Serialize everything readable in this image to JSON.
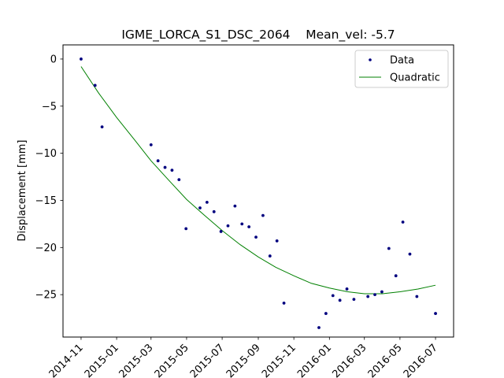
{
  "chart_data": {
    "type": "scatter",
    "title": "IGME_LORCA_S1_DSC_2064    Mean_vel: -5.7",
    "xlabel": "",
    "ylabel": "Displacement [mm]",
    "xlim": [
      "2014-10-01",
      "2016-08-01"
    ],
    "ylim": [
      -29.5,
      1.5
    ],
    "grid": false,
    "legend": {
      "placement": "top-right",
      "entries": [
        "Data",
        "Quadratic"
      ]
    },
    "x_ticks": [
      {
        "date": "2014-11-01",
        "label": "2014-11"
      },
      {
        "date": "2015-01-01",
        "label": "2015-01"
      },
      {
        "date": "2015-03-01",
        "label": "2015-03"
      },
      {
        "date": "2015-05-01",
        "label": "2015-05"
      },
      {
        "date": "2015-07-01",
        "label": "2015-07"
      },
      {
        "date": "2015-09-01",
        "label": "2015-09"
      },
      {
        "date": "2015-11-01",
        "label": "2015-11"
      },
      {
        "date": "2016-01-01",
        "label": "2016-01"
      },
      {
        "date": "2016-03-01",
        "label": "2016-03"
      },
      {
        "date": "2016-05-01",
        "label": "2016-05"
      },
      {
        "date": "2016-07-01",
        "label": "2016-07"
      }
    ],
    "y_ticks": [
      {
        "value": 0,
        "label": "0"
      },
      {
        "value": -5,
        "label": "−5"
      },
      {
        "value": -10,
        "label": "−10"
      },
      {
        "value": -15,
        "label": "−15"
      },
      {
        "value": -20,
        "label": "−20"
      },
      {
        "value": -25,
        "label": "−25"
      }
    ],
    "series": [
      {
        "name": "Data",
        "kind": "points",
        "color": "#00007f",
        "points": [
          {
            "x": "2014-11-01",
            "y": 0.0
          },
          {
            "x": "2014-11-25",
            "y": -2.8
          },
          {
            "x": "2014-12-07",
            "y": -7.2
          },
          {
            "x": "2015-03-01",
            "y": -9.1
          },
          {
            "x": "2015-03-13",
            "y": -10.8
          },
          {
            "x": "2015-03-25",
            "y": -11.5
          },
          {
            "x": "2015-04-06",
            "y": -11.8
          },
          {
            "x": "2015-04-18",
            "y": -12.8
          },
          {
            "x": "2015-04-30",
            "y": -18.0
          },
          {
            "x": "2015-05-24",
            "y": -15.8
          },
          {
            "x": "2015-06-05",
            "y": -15.2
          },
          {
            "x": "2015-06-17",
            "y": -16.2
          },
          {
            "x": "2015-06-29",
            "y": -18.3
          },
          {
            "x": "2015-07-11",
            "y": -17.7
          },
          {
            "x": "2015-07-23",
            "y": -15.6
          },
          {
            "x": "2015-08-04",
            "y": -17.5
          },
          {
            "x": "2015-08-16",
            "y": -17.8
          },
          {
            "x": "2015-08-28",
            "y": -18.9
          },
          {
            "x": "2015-09-09",
            "y": -16.6
          },
          {
            "x": "2015-09-21",
            "y": -20.9
          },
          {
            "x": "2015-10-03",
            "y": -19.3
          },
          {
            "x": "2015-10-15",
            "y": -25.9
          },
          {
            "x": "2015-12-14",
            "y": -28.5
          },
          {
            "x": "2015-12-26",
            "y": -27.0
          },
          {
            "x": "2016-01-07",
            "y": -25.1
          },
          {
            "x": "2016-01-19",
            "y": -25.6
          },
          {
            "x": "2016-01-31",
            "y": -24.4
          },
          {
            "x": "2016-02-12",
            "y": -25.5
          },
          {
            "x": "2016-03-07",
            "y": -25.2
          },
          {
            "x": "2016-03-19",
            "y": -25.0
          },
          {
            "x": "2016-03-31",
            "y": -24.7
          },
          {
            "x": "2016-04-12",
            "y": -20.1
          },
          {
            "x": "2016-04-24",
            "y": -23.0
          },
          {
            "x": "2016-05-06",
            "y": -17.3
          },
          {
            "x": "2016-05-18",
            "y": -20.7
          },
          {
            "x": "2016-05-30",
            "y": -25.2
          },
          {
            "x": "2016-07-01",
            "y": -27.0
          }
        ]
      },
      {
        "name": "Quadratic",
        "kind": "line",
        "color": "#008000",
        "points": [
          {
            "x": "2014-11-01",
            "y": -0.8
          },
          {
            "x": "2014-12-01",
            "y": -3.6
          },
          {
            "x": "2015-01-01",
            "y": -6.2
          },
          {
            "x": "2015-02-01",
            "y": -8.6
          },
          {
            "x": "2015-03-01",
            "y": -10.8
          },
          {
            "x": "2015-04-01",
            "y": -12.9
          },
          {
            "x": "2015-05-01",
            "y": -14.9
          },
          {
            "x": "2015-06-01",
            "y": -16.6
          },
          {
            "x": "2015-07-01",
            "y": -18.2
          },
          {
            "x": "2015-08-01",
            "y": -19.7
          },
          {
            "x": "2015-09-01",
            "y": -21.0
          },
          {
            "x": "2015-10-01",
            "y": -22.1
          },
          {
            "x": "2015-11-01",
            "y": -23.0
          },
          {
            "x": "2015-12-01",
            "y": -23.8
          },
          {
            "x": "2016-01-01",
            "y": -24.3
          },
          {
            "x": "2016-02-01",
            "y": -24.7
          },
          {
            "x": "2016-03-01",
            "y": -24.9
          },
          {
            "x": "2016-04-01",
            "y": -24.9
          },
          {
            "x": "2016-05-01",
            "y": -24.7
          },
          {
            "x": "2016-06-01",
            "y": -24.4
          },
          {
            "x": "2016-07-01",
            "y": -24.0
          }
        ]
      }
    ]
  }
}
